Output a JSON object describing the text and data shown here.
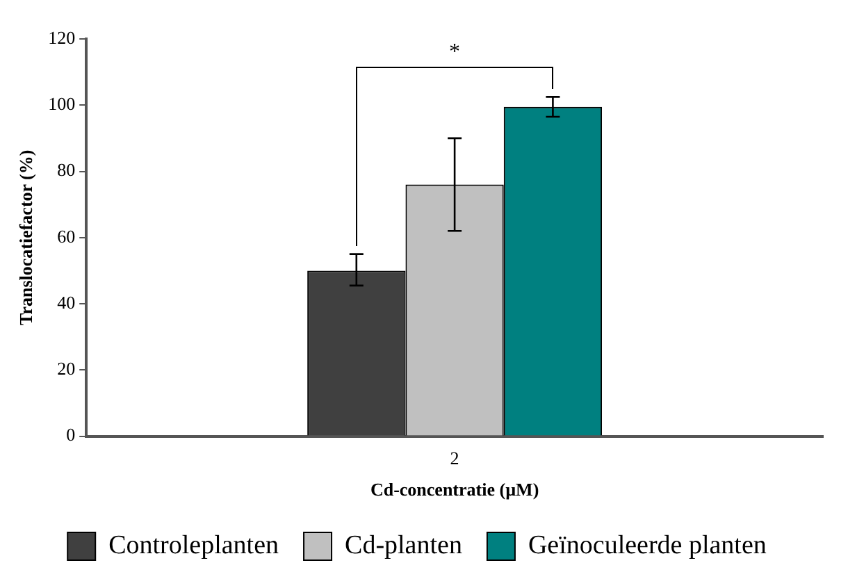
{
  "chart_data": {
    "type": "bar",
    "xlabel": "Cd-concentratie (µM)",
    "ylabel": "Translocatiefactor (%)",
    "categories": [
      "2"
    ],
    "series": [
      {
        "name": "Controleplanten",
        "color": "#404040",
        "values": [
          50
        ],
        "errors": [
          [
            45.5,
            55
          ]
        ]
      },
      {
        "name": "Cd-planten",
        "color": "#c0c0c0",
        "values": [
          76
        ],
        "errors": [
          [
            62,
            90
          ]
        ]
      },
      {
        "name": "Geïnoculeerde planten",
        "color": "#008080",
        "values": [
          99.5
        ],
        "errors": [
          [
            96.5,
            102.5
          ]
        ]
      }
    ],
    "ylim": [
      0,
      120
    ],
    "yticks": [
      0,
      20,
      40,
      60,
      80,
      100,
      120
    ],
    "grid": false,
    "legend": "bottom",
    "annotations": [
      "*"
    ]
  }
}
